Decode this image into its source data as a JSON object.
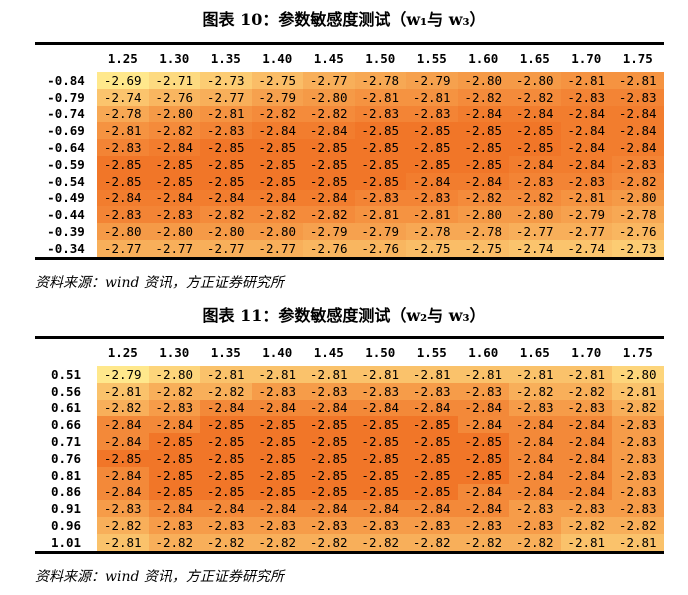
{
  "tables": [
    {
      "title": "图表 10：参数敏感度测试（w₁与 w₃）",
      "columns": [
        "1.25",
        "1.30",
        "1.35",
        "1.40",
        "1.45",
        "1.50",
        "1.55",
        "1.60",
        "1.65",
        "1.70",
        "1.75"
      ],
      "rows": [
        {
          "label": "-0.84",
          "cells": [
            "-2.69",
            "-2.71",
            "-2.73",
            "-2.75",
            "-2.77",
            "-2.78",
            "-2.79",
            "-2.80",
            "-2.80",
            "-2.81",
            "-2.81"
          ]
        },
        {
          "label": "-0.79",
          "cells": [
            "-2.74",
            "-2.76",
            "-2.77",
            "-2.79",
            "-2.80",
            "-2.81",
            "-2.81",
            "-2.82",
            "-2.82",
            "-2.83",
            "-2.83"
          ]
        },
        {
          "label": "-0.74",
          "cells": [
            "-2.78",
            "-2.80",
            "-2.81",
            "-2.82",
            "-2.82",
            "-2.83",
            "-2.83",
            "-2.84",
            "-2.84",
            "-2.84",
            "-2.84"
          ]
        },
        {
          "label": "-0.69",
          "cells": [
            "-2.81",
            "-2.82",
            "-2.83",
            "-2.84",
            "-2.84",
            "-2.85",
            "-2.85",
            "-2.85",
            "-2.85",
            "-2.84",
            "-2.84"
          ]
        },
        {
          "label": "-0.64",
          "cells": [
            "-2.83",
            "-2.84",
            "-2.85",
            "-2.85",
            "-2.85",
            "-2.85",
            "-2.85",
            "-2.85",
            "-2.85",
            "-2.84",
            "-2.84"
          ]
        },
        {
          "label": "-0.59",
          "cells": [
            "-2.85",
            "-2.85",
            "-2.85",
            "-2.85",
            "-2.85",
            "-2.85",
            "-2.85",
            "-2.85",
            "-2.84",
            "-2.84",
            "-2.83"
          ]
        },
        {
          "label": "-0.54",
          "cells": [
            "-2.85",
            "-2.85",
            "-2.85",
            "-2.85",
            "-2.85",
            "-2.85",
            "-2.84",
            "-2.84",
            "-2.83",
            "-2.83",
            "-2.82"
          ]
        },
        {
          "label": "-0.49",
          "cells": [
            "-2.84",
            "-2.84",
            "-2.84",
            "-2.84",
            "-2.84",
            "-2.83",
            "-2.83",
            "-2.82",
            "-2.82",
            "-2.81",
            "-2.80"
          ]
        },
        {
          "label": "-0.44",
          "cells": [
            "-2.83",
            "-2.83",
            "-2.82",
            "-2.82",
            "-2.82",
            "-2.81",
            "-2.81",
            "-2.80",
            "-2.80",
            "-2.79",
            "-2.78"
          ]
        },
        {
          "label": "-0.39",
          "cells": [
            "-2.80",
            "-2.80",
            "-2.80",
            "-2.80",
            "-2.79",
            "-2.79",
            "-2.78",
            "-2.78",
            "-2.77",
            "-2.77",
            "-2.76"
          ]
        },
        {
          "label": "-0.34",
          "cells": [
            "-2.77",
            "-2.77",
            "-2.77",
            "-2.77",
            "-2.76",
            "-2.76",
            "-2.75",
            "-2.75",
            "-2.74",
            "-2.74",
            "-2.73"
          ]
        }
      ],
      "source": "资料来源：wind 资讯，方正证券研究所"
    },
    {
      "title": "图表 11：参数敏感度测试（w₂与 w₃）",
      "columns": [
        "1.25",
        "1.30",
        "1.35",
        "1.40",
        "1.45",
        "1.50",
        "1.55",
        "1.60",
        "1.65",
        "1.70",
        "1.75"
      ],
      "rows": [
        {
          "label": "0.51",
          "cells": [
            "-2.79",
            "-2.80",
            "-2.81",
            "-2.81",
            "-2.81",
            "-2.81",
            "-2.81",
            "-2.81",
            "-2.81",
            "-2.81",
            "-2.80"
          ]
        },
        {
          "label": "0.56",
          "cells": [
            "-2.81",
            "-2.82",
            "-2.82",
            "-2.83",
            "-2.83",
            "-2.83",
            "-2.83",
            "-2.83",
            "-2.82",
            "-2.82",
            "-2.81"
          ]
        },
        {
          "label": "0.61",
          "cells": [
            "-2.82",
            "-2.83",
            "-2.84",
            "-2.84",
            "-2.84",
            "-2.84",
            "-2.84",
            "-2.84",
            "-2.83",
            "-2.83",
            "-2.82"
          ]
        },
        {
          "label": "0.66",
          "cells": [
            "-2.84",
            "-2.84",
            "-2.85",
            "-2.85",
            "-2.85",
            "-2.85",
            "-2.85",
            "-2.84",
            "-2.84",
            "-2.84",
            "-2.83"
          ]
        },
        {
          "label": "0.71",
          "cells": [
            "-2.84",
            "-2.85",
            "-2.85",
            "-2.85",
            "-2.85",
            "-2.85",
            "-2.85",
            "-2.85",
            "-2.84",
            "-2.84",
            "-2.83"
          ]
        },
        {
          "label": "0.76",
          "cells": [
            "-2.85",
            "-2.85",
            "-2.85",
            "-2.85",
            "-2.85",
            "-2.85",
            "-2.85",
            "-2.85",
            "-2.84",
            "-2.84",
            "-2.83"
          ]
        },
        {
          "label": "0.81",
          "cells": [
            "-2.84",
            "-2.85",
            "-2.85",
            "-2.85",
            "-2.85",
            "-2.85",
            "-2.85",
            "-2.85",
            "-2.84",
            "-2.84",
            "-2.83"
          ]
        },
        {
          "label": "0.86",
          "cells": [
            "-2.84",
            "-2.85",
            "-2.85",
            "-2.85",
            "-2.85",
            "-2.85",
            "-2.85",
            "-2.84",
            "-2.84",
            "-2.84",
            "-2.83"
          ]
        },
        {
          "label": "0.91",
          "cells": [
            "-2.83",
            "-2.84",
            "-2.84",
            "-2.84",
            "-2.84",
            "-2.84",
            "-2.84",
            "-2.84",
            "-2.83",
            "-2.83",
            "-2.83"
          ]
        },
        {
          "label": "0.96",
          "cells": [
            "-2.82",
            "-2.83",
            "-2.83",
            "-2.83",
            "-2.83",
            "-2.83",
            "-2.83",
            "-2.83",
            "-2.83",
            "-2.82",
            "-2.82"
          ]
        },
        {
          "label": "1.01",
          "cells": [
            "-2.81",
            "-2.82",
            "-2.82",
            "-2.82",
            "-2.82",
            "-2.82",
            "-2.82",
            "-2.82",
            "-2.82",
            "-2.81",
            "-2.81"
          ]
        }
      ],
      "source": "资料来源：wind 资讯，方正证券研究所"
    }
  ]
}
